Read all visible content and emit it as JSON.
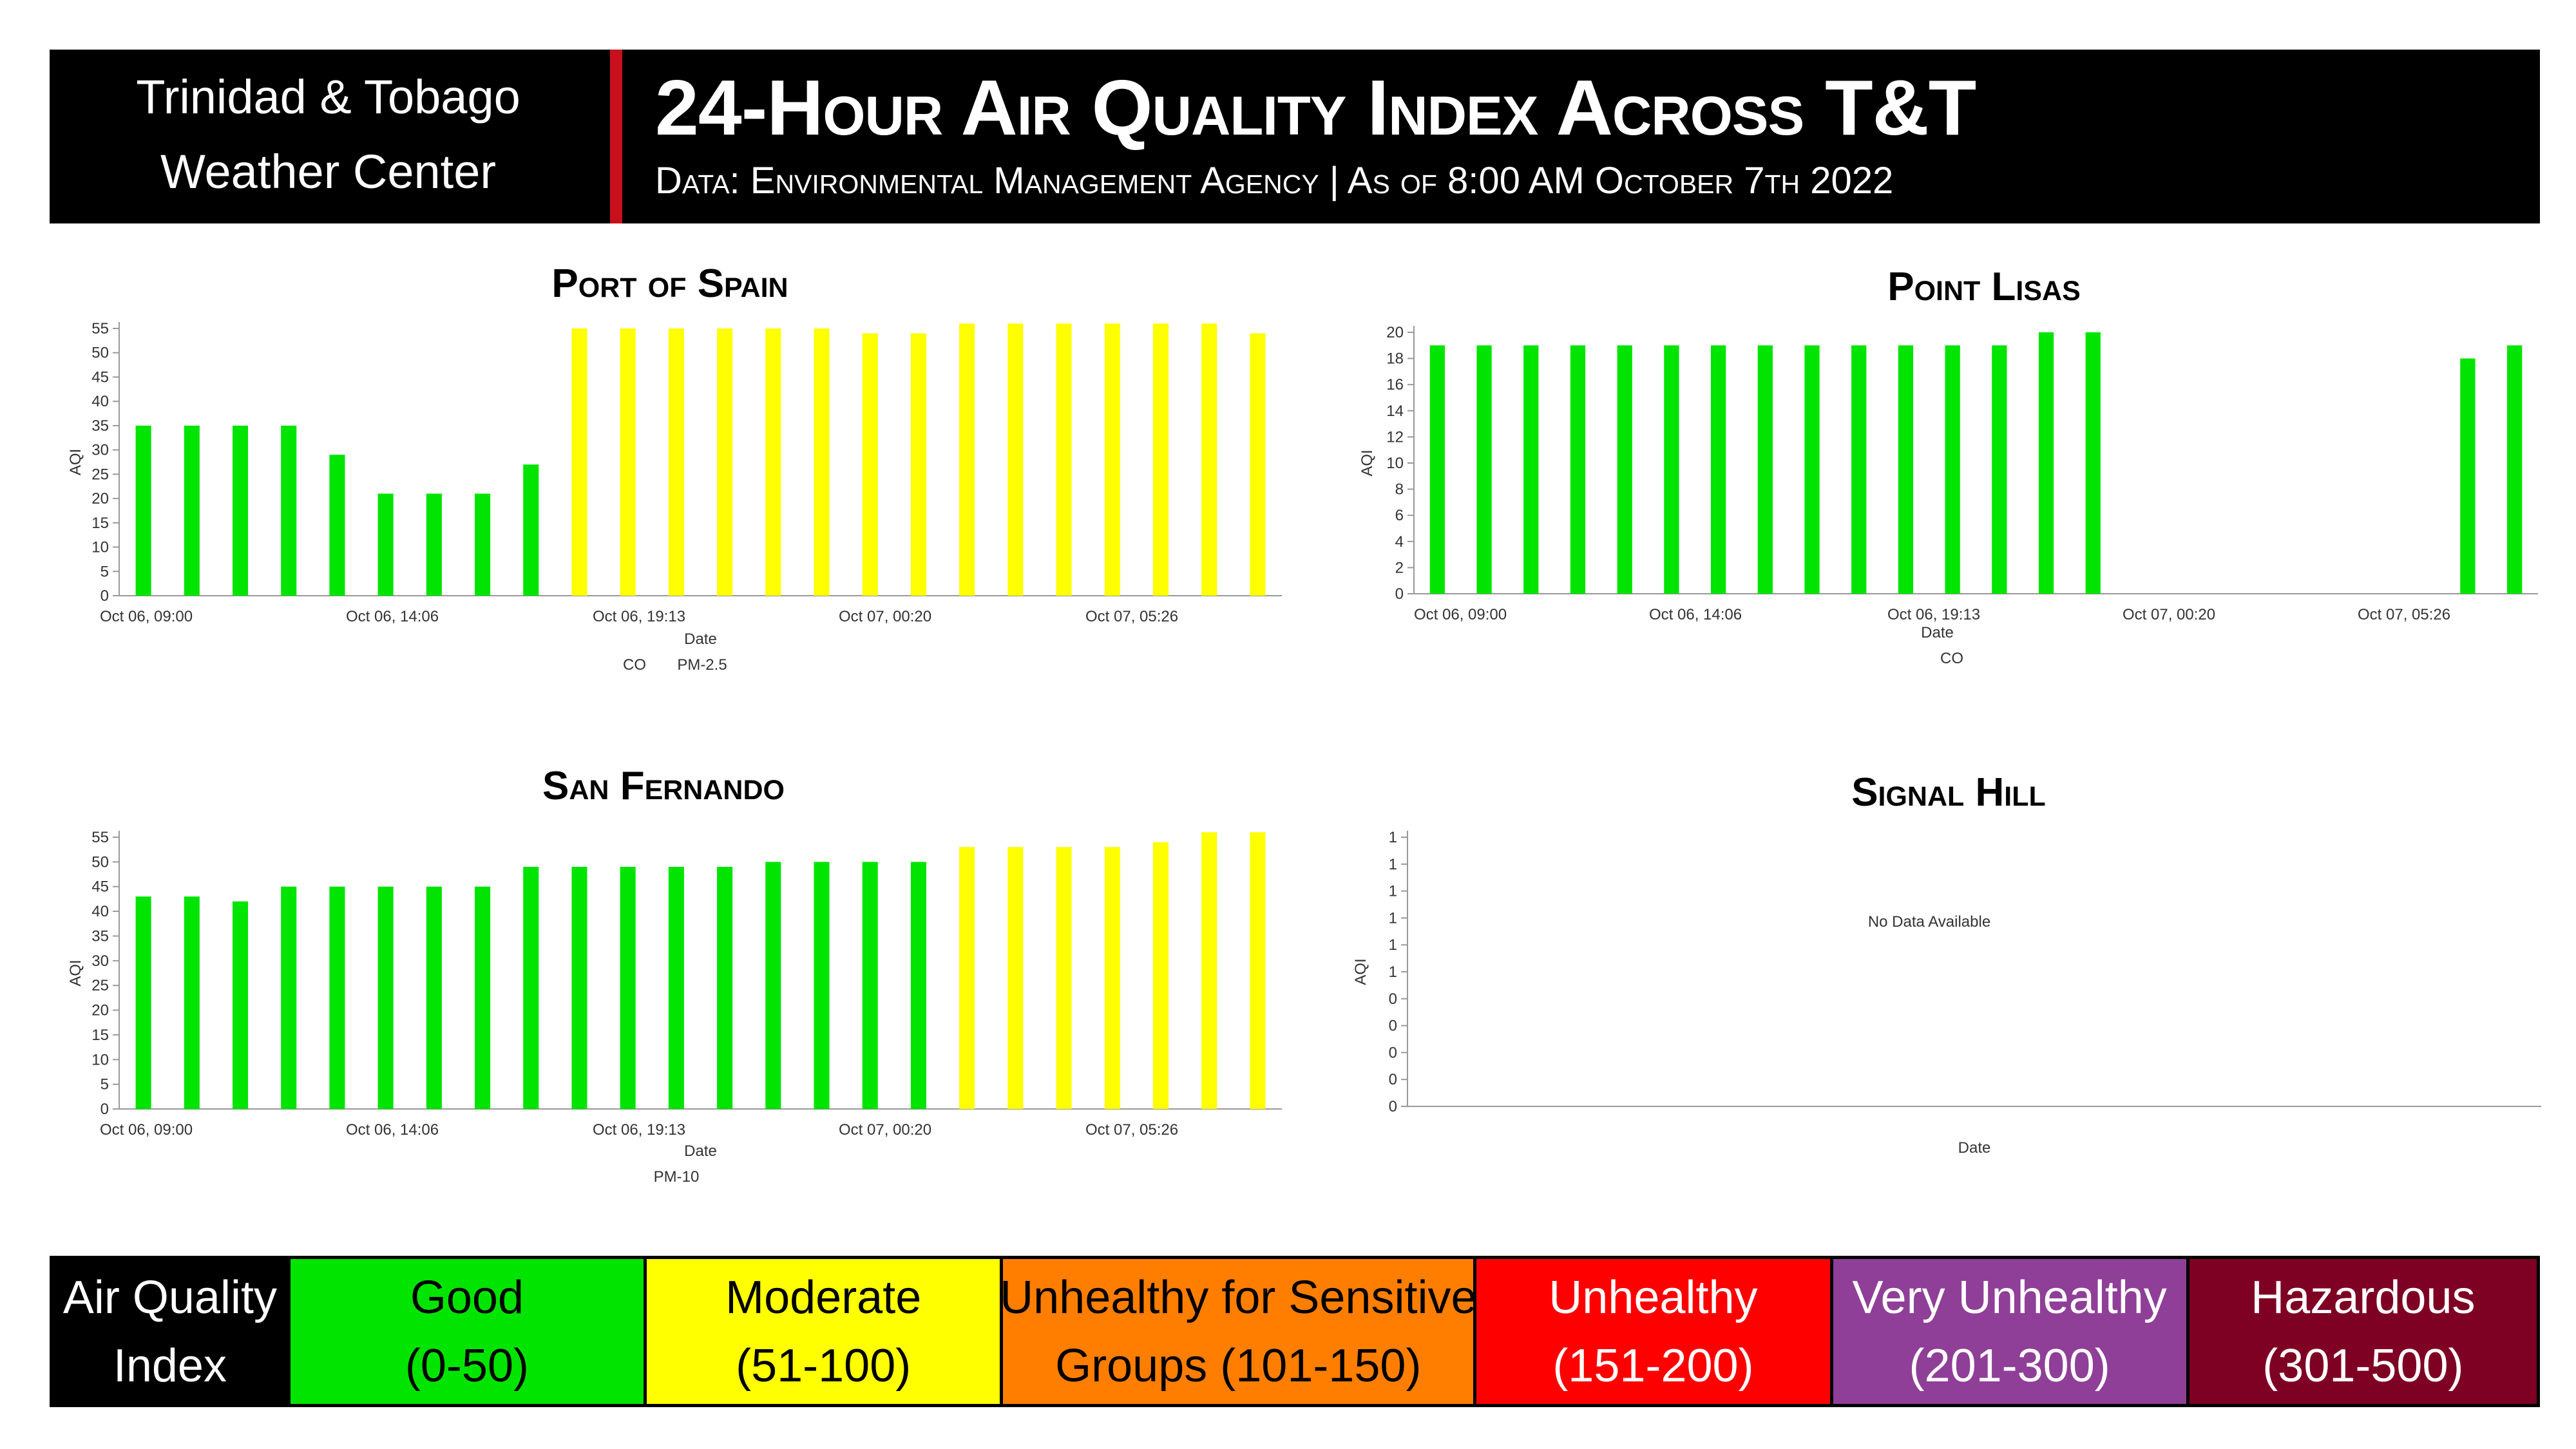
{
  "header": {
    "brand_line1": "Trinidad & Tobago",
    "brand_line2": "Weather Center",
    "title": "24-Hour Air Quality Index Across T&T",
    "subtitle": "Data: Environmental Management Agency | As of 8:00 AM October 7th 2022"
  },
  "colors": {
    "good": "#00e400",
    "moderate": "#ffff00",
    "usg": "#ff7e00",
    "unhealthy": "#ff0000",
    "very_unhealthy": "#8f3f97",
    "hazardous": "#7e0023"
  },
  "chart_data": [
    {
      "id": "port-of-spain",
      "type": "bar",
      "title": "Port of Spain",
      "xlabel": "Date",
      "ylabel": "AQI",
      "legend_text": [
        "CO",
        "PM-2.5"
      ],
      "x_tick_labels": [
        "Oct 06, 09:00",
        "Oct 06, 14:06",
        "Oct 06, 19:13",
        "Oct 07, 00:20",
        "Oct 07, 05:26"
      ],
      "y_tick_labels": [
        "0",
        "5",
        "10",
        "15",
        "20",
        "25",
        "30",
        "35",
        "40",
        "45",
        "50",
        "55"
      ],
      "ylim": [
        0,
        55
      ],
      "values": [
        35,
        35,
        35,
        35,
        29,
        21,
        21,
        21,
        27,
        55,
        55,
        55,
        55,
        55,
        55,
        54,
        54,
        56,
        56,
        56,
        56,
        56,
        56,
        54
      ],
      "colors": [
        "good",
        "good",
        "good",
        "good",
        "good",
        "good",
        "good",
        "good",
        "good",
        "moderate",
        "moderate",
        "moderate",
        "moderate",
        "moderate",
        "moderate",
        "moderate",
        "moderate",
        "moderate",
        "moderate",
        "moderate",
        "moderate",
        "moderate",
        "moderate",
        "moderate"
      ]
    },
    {
      "id": "point-lisas",
      "type": "bar",
      "title": "Point Lisas",
      "xlabel": "Date",
      "ylabel": "AQI",
      "legend_text": [
        "CO"
      ],
      "x_tick_labels": [
        "Oct 06, 09:00",
        "Oct 06, 14:06",
        "Oct 06, 19:13",
        "Oct 07, 00:20",
        "Oct 07, 05:26"
      ],
      "y_tick_labels": [
        "0",
        "2",
        "4",
        "6",
        "8",
        "10",
        "12",
        "14",
        "16",
        "18",
        "20"
      ],
      "ylim": [
        0,
        20
      ],
      "values": [
        19,
        19,
        19,
        19,
        19,
        19,
        19,
        19,
        19,
        19,
        19,
        19,
        19,
        20,
        20,
        null,
        null,
        null,
        null,
        null,
        null,
        null,
        18,
        19
      ],
      "colors": [
        "good",
        "good",
        "good",
        "good",
        "good",
        "good",
        "good",
        "good",
        "good",
        "good",
        "good",
        "good",
        "good",
        "good",
        "good",
        "good",
        "good",
        "good",
        "good",
        "good",
        "good",
        "good",
        "good",
        "good"
      ]
    },
    {
      "id": "san-fernando",
      "type": "bar",
      "title": "San Fernando",
      "xlabel": "Date",
      "ylabel": "AQI",
      "legend_text": [
        "PM-10"
      ],
      "x_tick_labels": [
        "Oct 06, 09:00",
        "Oct 06, 14:06",
        "Oct 06, 19:13",
        "Oct 07, 00:20",
        "Oct 07, 05:26"
      ],
      "y_tick_labels": [
        "0",
        "5",
        "10",
        "15",
        "20",
        "25",
        "30",
        "35",
        "40",
        "45",
        "50",
        "55"
      ],
      "ylim": [
        0,
        55
      ],
      "values": [
        43,
        43,
        42,
        45,
        45,
        45,
        45,
        45,
        49,
        49,
        49,
        49,
        49,
        50,
        50,
        50,
        50,
        53,
        53,
        53,
        53,
        54,
        56,
        56
      ],
      "colors": [
        "good",
        "good",
        "good",
        "good",
        "good",
        "good",
        "good",
        "good",
        "good",
        "good",
        "good",
        "good",
        "good",
        "good",
        "good",
        "good",
        "good",
        "moderate",
        "moderate",
        "moderate",
        "moderate",
        "moderate",
        "moderate",
        "moderate"
      ]
    },
    {
      "id": "signal-hill",
      "type": "bar",
      "title": "Signal Hill",
      "xlabel": "Date",
      "ylabel": "AQI",
      "y_tick_labels": [
        "0",
        "0",
        "0",
        "0",
        "0",
        "1",
        "1",
        "1",
        "1",
        "1",
        "1"
      ],
      "no_data_text": "No Data Available",
      "values": []
    }
  ],
  "legend": [
    {
      "line1": "Air Quality",
      "line2": "Index",
      "bg": "#000000",
      "fg": "#ffffff"
    },
    {
      "line1": "Good",
      "line2": "(0-50)",
      "bg": "#00e400",
      "fg": "#000000"
    },
    {
      "line1": "Moderate",
      "line2": "(51-100)",
      "bg": "#ffff00",
      "fg": "#000000"
    },
    {
      "line1": "Unhealthy for Sensitive",
      "line2": "Groups (101-150)",
      "bg": "#ff7e00",
      "fg": "#000000"
    },
    {
      "line1": "Unhealthy",
      "line2": "(151-200)",
      "bg": "#ff0000",
      "fg": "#ffffff"
    },
    {
      "line1": "Very Unhealthy",
      "line2": "(201-300)",
      "bg": "#8f3f97",
      "fg": "#ffffff"
    },
    {
      "line1": "Hazardous",
      "line2": "(301-500)",
      "bg": "#7e0023",
      "fg": "#ffffff"
    }
  ]
}
